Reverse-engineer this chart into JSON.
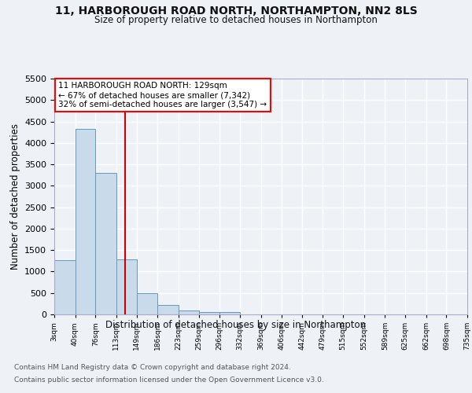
{
  "title_line1": "11, HARBOROUGH ROAD NORTH, NORTHAMPTON, NN2 8LS",
  "title_line2": "Size of property relative to detached houses in Northampton",
  "xlabel": "Distribution of detached houses by size in Northampton",
  "ylabel": "Number of detached properties",
  "annotation_line1": "11 HARBOROUGH ROAD NORTH: 129sqm",
  "annotation_line2": "← 67% of detached houses are smaller (7,342)",
  "annotation_line3": "32% of semi-detached houses are larger (3,547) →",
  "property_size": 129,
  "bar_edges": [
    3,
    40,
    76,
    113,
    149,
    186,
    223,
    259,
    296,
    332,
    369,
    406,
    442,
    479,
    515,
    552,
    589,
    625,
    662,
    698,
    735
  ],
  "bar_heights": [
    1270,
    4330,
    3300,
    1280,
    490,
    220,
    90,
    60,
    50,
    0,
    0,
    0,
    0,
    0,
    0,
    0,
    0,
    0,
    0,
    0
  ],
  "bar_color": "#c9daea",
  "bar_edge_color": "#6699bb",
  "vline_color": "#cc0000",
  "vline_x": 129,
  "ylim": [
    0,
    5500
  ],
  "yticks": [
    0,
    500,
    1000,
    1500,
    2000,
    2500,
    3000,
    3500,
    4000,
    4500,
    5000,
    5500
  ],
  "background_color": "#eef2f7",
  "grid_color": "#ffffff",
  "footer_line1": "Contains HM Land Registry data © Crown copyright and database right 2024.",
  "footer_line2": "Contains public sector information licensed under the Open Government Licence v3.0."
}
